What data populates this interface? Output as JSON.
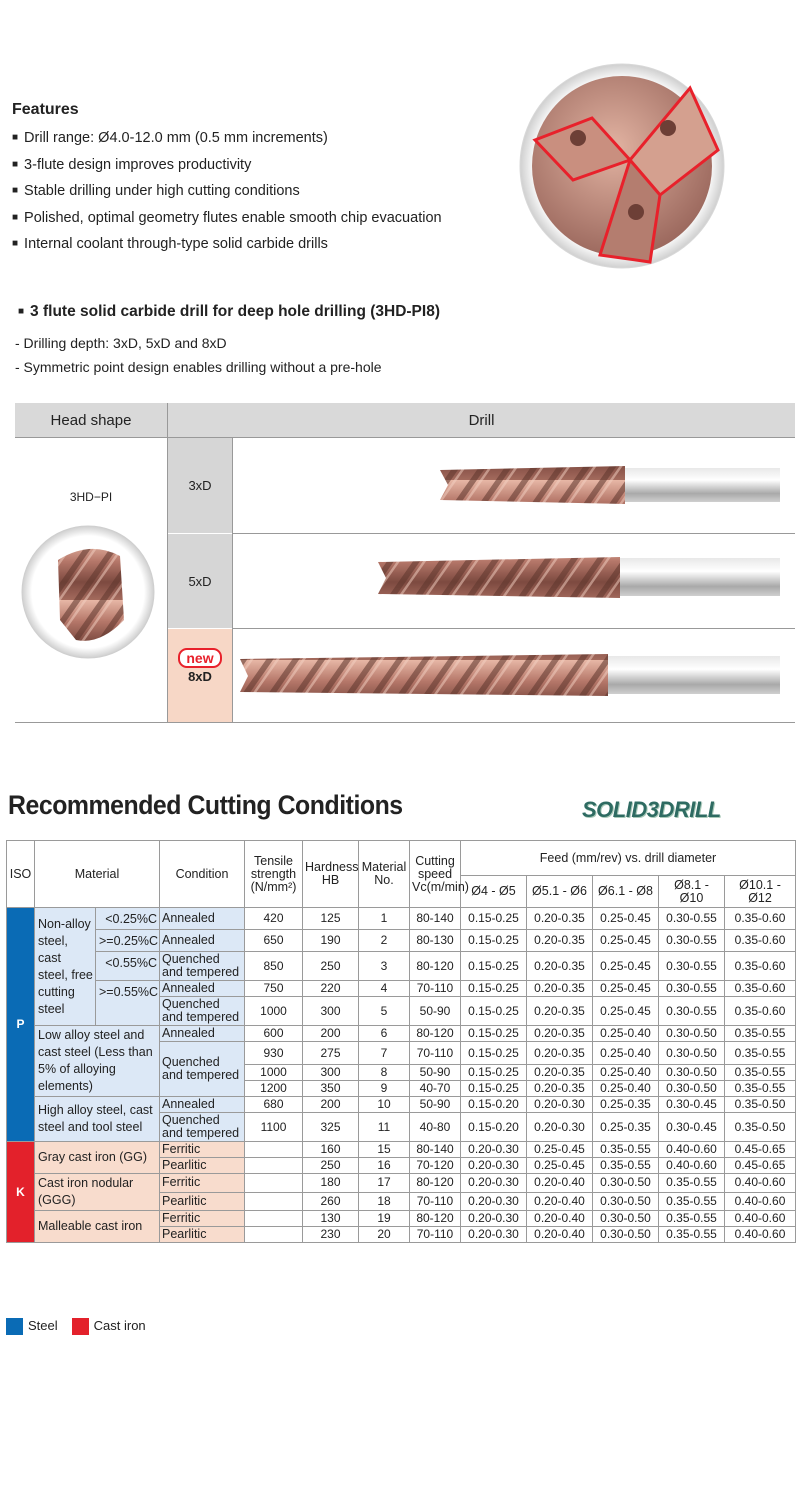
{
  "features": {
    "title": "Features",
    "items": [
      "Drill range: Ø4.0-12.0 mm (0.5 mm increments)",
      "3-flute design improves productivity",
      "Stable drilling under high cutting conditions",
      "Polished, optimal geometry flutes enable smooth chip evacuation",
      "Internal coolant through-type solid carbide drills"
    ]
  },
  "drill_section": {
    "title": "3 flute solid carbide drill for deep hole drilling (3HD-PI8)",
    "notes": [
      "- Drilling depth: 3xD, 5xD and 8xD",
      "- Symmetric point design enables drilling without a pre-hole"
    ]
  },
  "head_table": {
    "headers": [
      "Head shape",
      "Drill"
    ],
    "head_label": "3HD−PI",
    "new_badge": "new",
    "rows": [
      "3xD",
      "5xD",
      "8xD"
    ]
  },
  "conditions": {
    "title": "Recommended Cutting Conditions",
    "logo": "SOLID3DRILL",
    "table": {
      "headers": {
        "iso": "ISO",
        "material": "Material",
        "condition": "Condition",
        "tensile": "Tensile strength (N/mm²)",
        "hardness": "Hardness HB",
        "material_no": "Material No.",
        "speed": "Cutting speed Vc(m/min)",
        "feed": "Feed (mm/rev) vs. drill diameter",
        "diameters": [
          "Ø4 - Ø5",
          "Ø5.1 - Ø6",
          "Ø6.1 - Ø8",
          "Ø8.1 - Ø10",
          "Ø10.1 - Ø12"
        ]
      },
      "groups": [
        {
          "iso": "P",
          "materials": [
            {
              "name": "Non-alloy steel, cast steel, free cutting steel",
              "rows": [
                {
                  "sub": "<0.25%C",
                  "condition": "Annealed",
                  "tensile": 420,
                  "hb": 125,
                  "no": 1,
                  "vc": "80-140",
                  "feed": [
                    "0.15-0.25",
                    "0.20-0.35",
                    "0.25-0.45",
                    "0.30-0.55",
                    "0.35-0.60"
                  ]
                },
                {
                  "sub": ">=0.25%C",
                  "condition": "Annealed",
                  "tensile": 650,
                  "hb": 190,
                  "no": 2,
                  "vc": "80-130",
                  "feed": [
                    "0.15-0.25",
                    "0.20-0.35",
                    "0.25-0.45",
                    "0.30-0.55",
                    "0.35-0.60"
                  ]
                },
                {
                  "sub": "<0.55%C",
                  "condition": "Quenched and tempered",
                  "tensile": 850,
                  "hb": 250,
                  "no": 3,
                  "vc": "80-120",
                  "feed": [
                    "0.15-0.25",
                    "0.20-0.35",
                    "0.25-0.45",
                    "0.30-0.55",
                    "0.35-0.60"
                  ]
                },
                {
                  "sub": ">=0.55%C",
                  "condition": "Annealed",
                  "tensile": 750,
                  "hb": 220,
                  "no": 4,
                  "vc": "70-110",
                  "feed": [
                    "0.15-0.25",
                    "0.20-0.35",
                    "0.25-0.45",
                    "0.30-0.55",
                    "0.35-0.60"
                  ]
                },
                {
                  "sub": null,
                  "condition": "Quenched and tempered",
                  "tensile": 1000,
                  "hb": 300,
                  "no": 5,
                  "vc": "50-90",
                  "feed": [
                    "0.15-0.25",
                    "0.20-0.35",
                    "0.25-0.45",
                    "0.30-0.55",
                    "0.35-0.60"
                  ]
                }
              ]
            },
            {
              "name": "Low alloy steel and cast steel (Less than 5% of alloying elements)",
              "rows": [
                {
                  "condition": "Annealed",
                  "tensile": 600,
                  "hb": 200,
                  "no": 6,
                  "vc": "80-120",
                  "feed": [
                    "0.15-0.25",
                    "0.20-0.35",
                    "0.25-0.40",
                    "0.30-0.50",
                    "0.35-0.55"
                  ]
                },
                {
                  "condition": "Quenched and tempered",
                  "tensile": 930,
                  "hb": 275,
                  "no": 7,
                  "vc": "70-110",
                  "feed": [
                    "0.15-0.25",
                    "0.20-0.35",
                    "0.25-0.40",
                    "0.30-0.50",
                    "0.35-0.55"
                  ]
                },
                {
                  "condition": null,
                  "tensile": 1000,
                  "hb": 300,
                  "no": 8,
                  "vc": "50-90",
                  "feed": [
                    "0.15-0.25",
                    "0.20-0.35",
                    "0.25-0.40",
                    "0.30-0.50",
                    "0.35-0.55"
                  ]
                },
                {
                  "condition": null,
                  "tensile": 1200,
                  "hb": 350,
                  "no": 9,
                  "vc": "40-70",
                  "feed": [
                    "0.15-0.25",
                    "0.20-0.35",
                    "0.25-0.40",
                    "0.30-0.50",
                    "0.35-0.55"
                  ]
                }
              ]
            },
            {
              "name": "High alloy steel, cast steel and tool steel",
              "rows": [
                {
                  "condition": "Annealed",
                  "tensile": 680,
                  "hb": 200,
                  "no": 10,
                  "vc": "50-90",
                  "feed": [
                    "0.15-0.20",
                    "0.20-0.30",
                    "0.25-0.35",
                    "0.30-0.45",
                    "0.35-0.50"
                  ]
                },
                {
                  "condition": "Quenched and tempered",
                  "tensile": 1100,
                  "hb": 325,
                  "no": 11,
                  "vc": "40-80",
                  "feed": [
                    "0.15-0.20",
                    "0.20-0.30",
                    "0.25-0.35",
                    "0.30-0.45",
                    "0.35-0.50"
                  ]
                }
              ]
            }
          ]
        },
        {
          "iso": "K",
          "materials": [
            {
              "name": "Gray cast iron (GG)",
              "rows": [
                {
                  "condition": "Ferritic",
                  "tensile": null,
                  "hb": 160,
                  "no": 15,
                  "vc": "80-140",
                  "feed": [
                    "0.20-0.30",
                    "0.25-0.45",
                    "0.35-0.55",
                    "0.40-0.60",
                    "0.45-0.65"
                  ]
                },
                {
                  "condition": "Pearlitic",
                  "tensile": null,
                  "hb": 250,
                  "no": 16,
                  "vc": "70-120",
                  "feed": [
                    "0.20-0.30",
                    "0.25-0.45",
                    "0.35-0.55",
                    "0.40-0.60",
                    "0.45-0.65"
                  ]
                }
              ]
            },
            {
              "name": "Cast iron nodular (GGG)",
              "rows": [
                {
                  "condition": "Ferritic",
                  "tensile": null,
                  "hb": 180,
                  "no": 17,
                  "vc": "80-120",
                  "feed": [
                    "0.20-0.30",
                    "0.20-0.40",
                    "0.30-0.50",
                    "0.35-0.55",
                    "0.40-0.60"
                  ]
                },
                {
                  "condition": "Pearlitic",
                  "tensile": null,
                  "hb": 260,
                  "no": 18,
                  "vc": "70-110",
                  "feed": [
                    "0.20-0.30",
                    "0.20-0.40",
                    "0.30-0.50",
                    "0.35-0.55",
                    "0.40-0.60"
                  ]
                }
              ]
            },
            {
              "name": "Malleable cast iron",
              "rows": [
                {
                  "condition": "Ferritic",
                  "tensile": null,
                  "hb": 130,
                  "no": 19,
                  "vc": "80-120",
                  "feed": [
                    "0.20-0.30",
                    "0.20-0.40",
                    "0.30-0.50",
                    "0.35-0.55",
                    "0.40-0.60"
                  ]
                },
                {
                  "condition": "Pearlitic",
                  "tensile": null,
                  "hb": 230,
                  "no": 20,
                  "vc": "70-110",
                  "feed": [
                    "0.20-0.30",
                    "0.20-0.40",
                    "0.30-0.50",
                    "0.35-0.55",
                    "0.40-0.60"
                  ]
                }
              ]
            }
          ]
        }
      ]
    },
    "legend": [
      "Steel",
      "Cast iron"
    ]
  }
}
